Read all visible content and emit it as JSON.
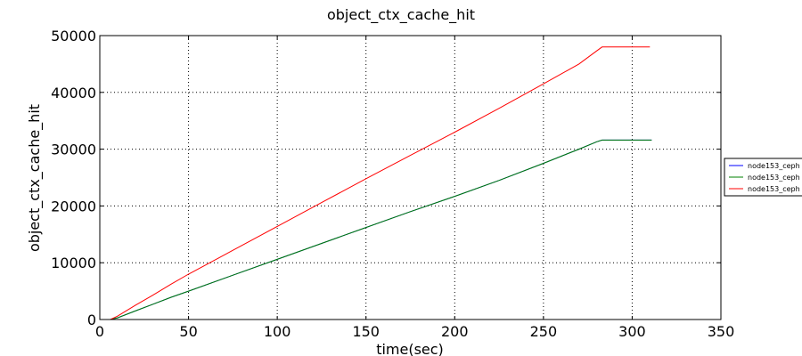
{
  "chart_data": {
    "type": "line",
    "title": "object_ctx_cache_hit",
    "xlabel": "time(sec)",
    "ylabel": "object_ctx_cache_hit",
    "xlim": [
      0,
      350
    ],
    "ylim": [
      0,
      50000
    ],
    "xticks": [
      0,
      50,
      100,
      150,
      200,
      250,
      300,
      350
    ],
    "yticks": [
      0,
      10000,
      20000,
      30000,
      40000,
      50000
    ],
    "xtick_labels": [
      "0",
      "50",
      "100",
      "150",
      "200",
      "250",
      "300",
      "350"
    ],
    "ytick_labels": [
      "0",
      "10000",
      "20000",
      "30000",
      "40000",
      "50000"
    ],
    "grid": true,
    "legend_position": "right, outside plot",
    "series": [
      {
        "name": "node153_ceph",
        "color": "#0000ff",
        "x": [
          6,
          10,
          20,
          30,
          40,
          50,
          75,
          100,
          125,
          150,
          175,
          200,
          225,
          250,
          270,
          280,
          283,
          290,
          300,
          311
        ],
        "values": [
          0,
          300,
          1500,
          2700,
          3900,
          5000,
          7800,
          10600,
          13400,
          16200,
          19000,
          21700,
          24500,
          27500,
          30000,
          31300,
          31600,
          31600,
          31600,
          31600
        ]
      },
      {
        "name": "node153_ceph",
        "color": "#008000",
        "x": [
          6,
          10,
          20,
          30,
          40,
          50,
          75,
          100,
          125,
          150,
          175,
          200,
          225,
          250,
          270,
          280,
          283,
          290,
          300,
          311
        ],
        "values": [
          0,
          300,
          1500,
          2700,
          3900,
          5000,
          7800,
          10600,
          13400,
          16200,
          19000,
          21700,
          24500,
          27500,
          30000,
          31300,
          31600,
          31600,
          31600,
          31600
        ]
      },
      {
        "name": "node153_ceph",
        "color": "#ff0000",
        "x": [
          6,
          10,
          20,
          30,
          40,
          50,
          75,
          100,
          125,
          150,
          175,
          200,
          225,
          250,
          270,
          280,
          283,
          290,
          300,
          310
        ],
        "values": [
          0,
          600,
          2500,
          4300,
          6200,
          8000,
          12200,
          16400,
          20600,
          24800,
          28900,
          33000,
          37200,
          41500,
          45000,
          47300,
          48000,
          48000,
          48000,
          48000
        ]
      }
    ]
  }
}
